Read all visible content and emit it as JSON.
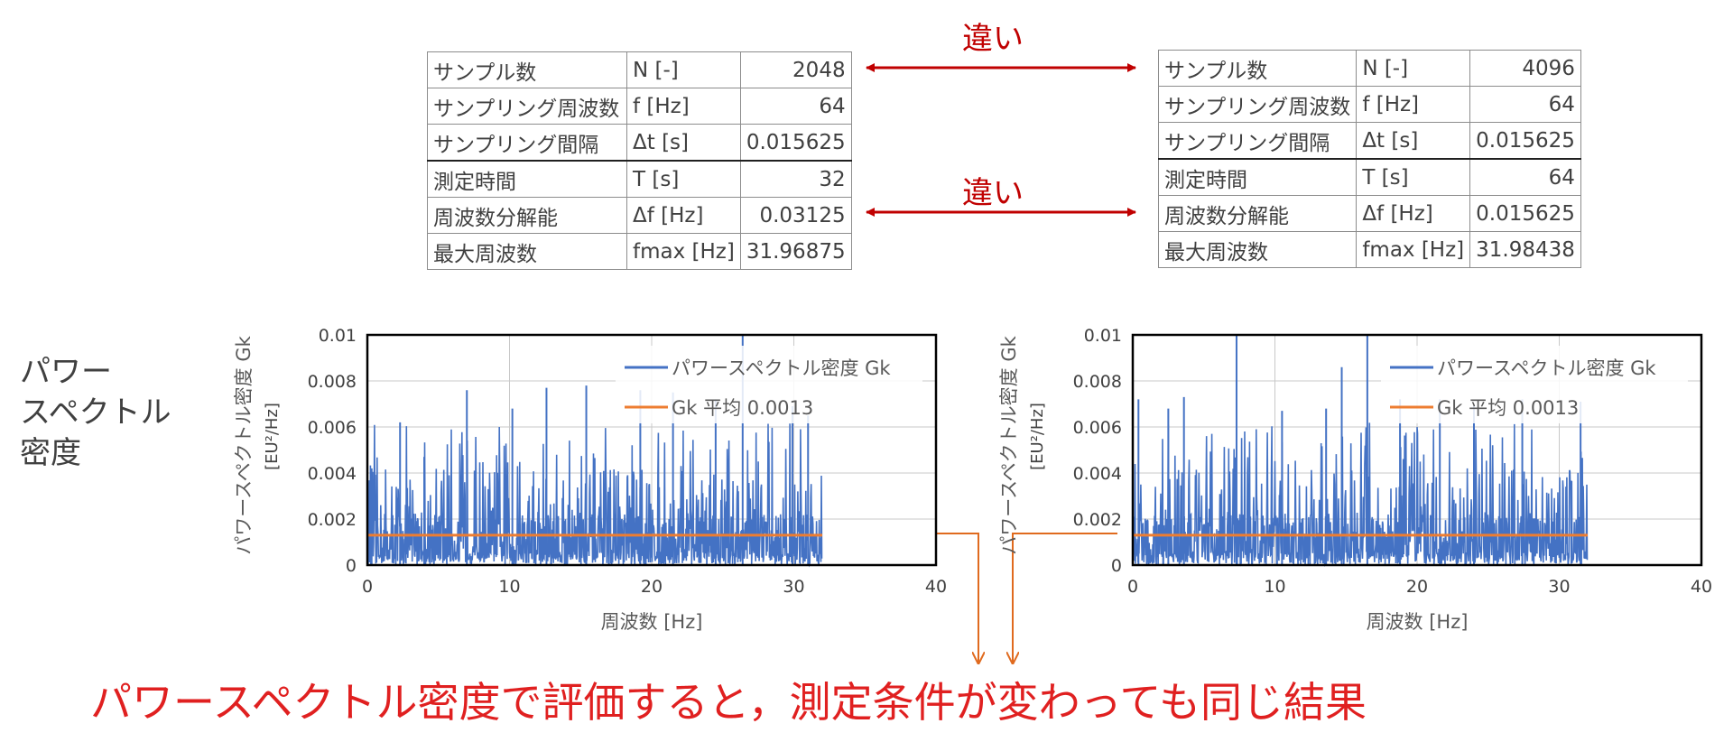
{
  "diff_label": "違い",
  "side_label": [
    "パワー",
    "スペクトル",
    "密度"
  ],
  "conclusion": "パワースペクトル密度で評価すると，測定条件が変わっても同じ結果",
  "tables": {
    "left": {
      "rows": [
        {
          "name": "サンプル数",
          "symbol": "N [-]",
          "value": "2048"
        },
        {
          "name": "サンプリング周波数",
          "symbol": "f [Hz]",
          "value": "64"
        },
        {
          "name": "サンプリング間隔",
          "symbol": "Δt [s]",
          "value": "0.015625"
        },
        {
          "name": "測定時間",
          "symbol": "T [s]",
          "value": "32"
        },
        {
          "name": "周波数分解能",
          "symbol": "Δf [Hz]",
          "value": "0.03125"
        },
        {
          "name": "最大周波数",
          "symbol": "fmax [Hz]",
          "value": "31.96875"
        }
      ]
    },
    "right": {
      "rows": [
        {
          "name": "サンプル数",
          "symbol": "N [-]",
          "value": "4096"
        },
        {
          "name": "サンプリング周波数",
          "symbol": "f [Hz]",
          "value": "64"
        },
        {
          "name": "サンプリング間隔",
          "symbol": "Δt [s]",
          "value": "0.015625"
        },
        {
          "name": "測定時間",
          "symbol": "T [s]",
          "value": "64"
        },
        {
          "name": "周波数分解能",
          "symbol": "Δf [Hz]",
          "value": "0.015625"
        },
        {
          "name": "最大周波数",
          "symbol": "fmax [Hz]",
          "value": "31.98438"
        }
      ]
    }
  },
  "colors": {
    "series": "#4472c4",
    "mean": "#ed7d31",
    "accent": "#c00000",
    "conclusion": "#e02020"
  },
  "chart_data": [
    {
      "type": "line",
      "ylabel": "パワースペクトル密度 Gk",
      "ylabel_unit": "[EU²/Hz]",
      "xlabel": "周波数 [Hz]",
      "xlim": [
        0,
        40
      ],
      "ylim": [
        0,
        0.01
      ],
      "xticks": [
        "0",
        "10",
        "20",
        "30",
        "40"
      ],
      "yticks": [
        "0",
        "0.002",
        "0.004",
        "0.006",
        "0.008",
        "0.01"
      ],
      "grid": true,
      "legend_position": "top-right",
      "series": [
        {
          "name": "パワースペクトル密度 Gk",
          "x_range": [
            0,
            31.96875
          ],
          "dx": 0.03125,
          "peaks": [
            [
              0.3,
              0.0042
            ],
            [
              2.3,
              0.0062
            ],
            [
              4.0,
              0.0047
            ],
            [
              7.0,
              0.0076
            ],
            [
              10.2,
              0.0068
            ],
            [
              12.6,
              0.0077
            ],
            [
              15.4,
              0.0078
            ],
            [
              19.2,
              0.0076
            ],
            [
              21.5,
              0.0075
            ],
            [
              24.5,
              0.0072
            ],
            [
              26.4,
              0.01
            ],
            [
              29.9,
              0.0069
            ],
            [
              31.0,
              0.0065
            ]
          ]
        },
        {
          "name": "Gk 平均 0.0013",
          "value": 0.0013,
          "x_range": [
            0,
            32
          ]
        }
      ]
    },
    {
      "type": "line",
      "ylabel": "パワースペクトル密度 Gk",
      "ylabel_unit": "[EU²/Hz]",
      "xlabel": "周波数 [Hz]",
      "xlim": [
        0,
        40
      ],
      "ylim": [
        0,
        0.01
      ],
      "xticks": [
        "0",
        "10",
        "20",
        "30",
        "40"
      ],
      "yticks": [
        "0",
        "0.002",
        "0.004",
        "0.006",
        "0.008",
        "0.01"
      ],
      "grid": true,
      "legend_position": "top-right",
      "series": [
        {
          "name": "パワースペクトル密度 Gk",
          "x_range": [
            0,
            31.984375
          ],
          "dx": 0.015625,
          "peaks": [
            [
              0.4,
              0.0072
            ],
            [
              2.5,
              0.0068
            ],
            [
              3.6,
              0.0073
            ],
            [
              7.3,
              0.01
            ],
            [
              10.5,
              0.0067
            ],
            [
              13.6,
              0.0068
            ],
            [
              14.7,
              0.0086
            ],
            [
              16.5,
              0.01
            ],
            [
              18.8,
              0.0072
            ],
            [
              21.6,
              0.0072
            ],
            [
              24.0,
              0.0069
            ],
            [
              27.4,
              0.0072
            ],
            [
              31.5,
              0.0071
            ]
          ]
        },
        {
          "name": "Gk 平均 0.0013",
          "value": 0.0013,
          "x_range": [
            0,
            32
          ]
        }
      ]
    }
  ]
}
